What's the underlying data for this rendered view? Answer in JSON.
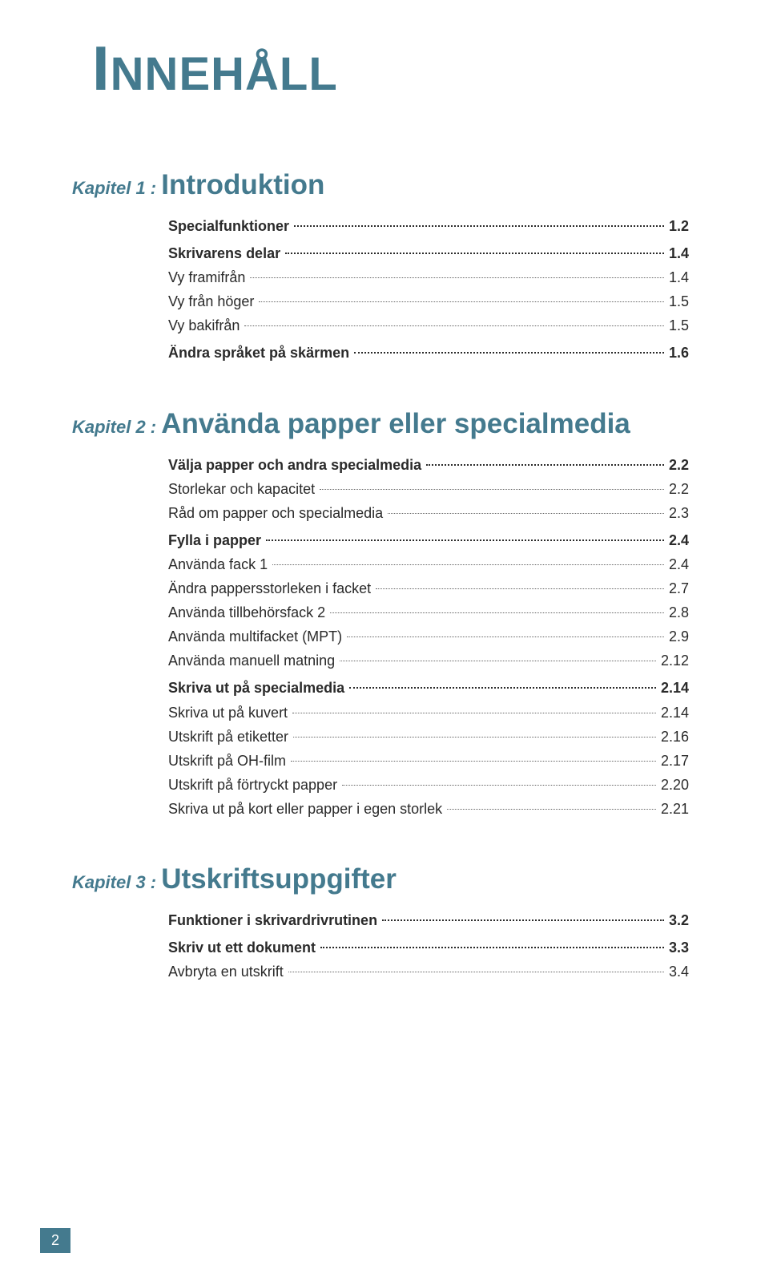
{
  "title": {
    "drop_cap": "I",
    "rest": "NNEHÅLL"
  },
  "colors": {
    "accent": "#447a8e",
    "text": "#2a2a2a",
    "background": "#ffffff"
  },
  "chapters": [
    {
      "prefix": "Kapitel 1 :",
      "name": "Introduktion",
      "entries": [
        {
          "label": "Specialfunktioner",
          "page": "1.2",
          "bold": true
        },
        {
          "label": "Skrivarens delar",
          "page": "1.4",
          "bold": true
        },
        {
          "label": "Vy framifrån",
          "page": "1.4",
          "bold": false
        },
        {
          "label": "Vy från höger",
          "page": "1.5",
          "bold": false
        },
        {
          "label": "Vy bakifrån",
          "page": "1.5",
          "bold": false
        },
        {
          "label": "Ändra språket på skärmen",
          "page": "1.6",
          "bold": true
        }
      ]
    },
    {
      "prefix": "Kapitel 2 :",
      "name": "Använda papper eller specialmedia",
      "entries": [
        {
          "label": "Välja papper och andra specialmedia",
          "page": "2.2",
          "bold": true
        },
        {
          "label": "Storlekar och kapacitet",
          "page": "2.2",
          "bold": false
        },
        {
          "label": "Råd om papper och specialmedia",
          "page": "2.3",
          "bold": false
        },
        {
          "label": "Fylla i papper",
          "page": "2.4",
          "bold": true
        },
        {
          "label": "Använda fack 1",
          "page": "2.4",
          "bold": false
        },
        {
          "label": "Ändra pappersstorleken i facket",
          "page": "2.7",
          "bold": false
        },
        {
          "label": "Använda tillbehörsfack 2",
          "page": "2.8",
          "bold": false
        },
        {
          "label": "Använda multifacket (MPT)",
          "page": "2.9",
          "bold": false
        },
        {
          "label": "Använda manuell matning",
          "page": "2.12",
          "bold": false
        },
        {
          "label": "Skriva ut på specialmedia",
          "page": "2.14",
          "bold": true
        },
        {
          "label": "Skriva ut på kuvert",
          "page": "2.14",
          "bold": false
        },
        {
          "label": "Utskrift på etiketter",
          "page": "2.16",
          "bold": false
        },
        {
          "label": "Utskrift på OH-film",
          "page": "2.17",
          "bold": false
        },
        {
          "label": "Utskrift på förtryckt papper",
          "page": "2.20",
          "bold": false
        },
        {
          "label": "Skriva ut på kort eller papper i egen storlek",
          "page": "2.21",
          "bold": false
        }
      ]
    },
    {
      "prefix": "Kapitel 3 :",
      "name": "Utskriftsuppgifter",
      "entries": [
        {
          "label": "Funktioner i skrivardrivrutinen",
          "page": "3.2",
          "bold": true
        },
        {
          "label": "Skriv ut ett dokument",
          "page": "3.3",
          "bold": true
        },
        {
          "label": "Avbryta en utskrift",
          "page": "3.4",
          "bold": false
        }
      ]
    }
  ],
  "page_number": "2"
}
